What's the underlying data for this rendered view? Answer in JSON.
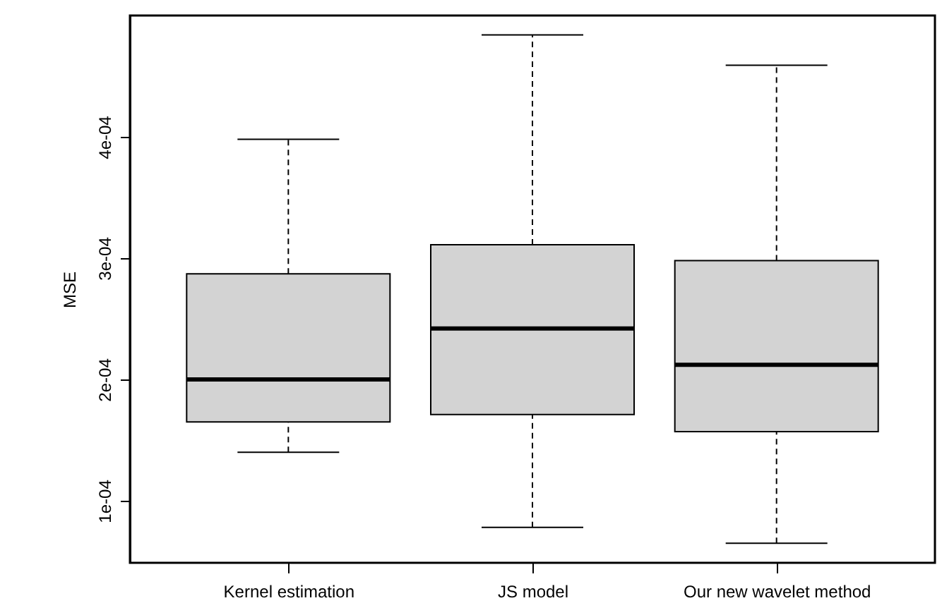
{
  "chart_data": {
    "type": "box",
    "ylabel": "MSE",
    "categories": [
      "Kernel estimation",
      "JS model",
      "Our new wavelet method"
    ],
    "boxes": [
      {
        "low": 0.00014,
        "q1": 0.000165,
        "median": 0.0002,
        "q3": 0.000287,
        "high": 0.000398
      },
      {
        "low": 7.8e-05,
        "q1": 0.000171,
        "median": 0.000242,
        "q3": 0.000311,
        "high": 0.000484
      },
      {
        "low": 6.5e-05,
        "q1": 0.000157,
        "median": 0.000212,
        "q3": 0.000298,
        "high": 0.000459
      }
    ],
    "colors": [
      "#d3d3d3",
      "#d3d3d3",
      "#d3d3d3"
    ],
    "ylim": [
      4.88e-05,
      0.0005
    ],
    "yticks": [
      {
        "value": 0.0001,
        "label": "1e-04"
      },
      {
        "value": 0.0002,
        "label": "2e-04"
      },
      {
        "value": 0.0003,
        "label": "3e-04"
      },
      {
        "value": 0.0004,
        "label": "4e-04"
      }
    ],
    "grid": false
  }
}
